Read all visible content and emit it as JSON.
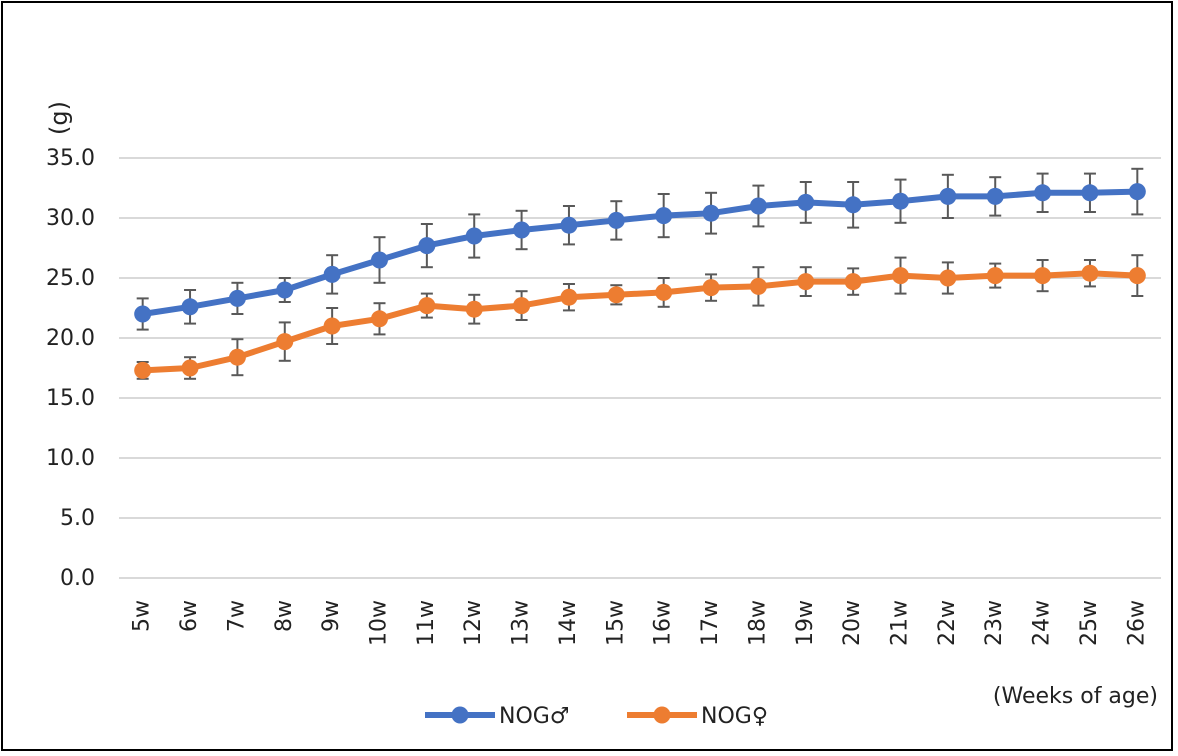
{
  "chart_data": {
    "type": "line",
    "title": "",
    "xlabel": "(Weeks of age)",
    "ylabel": "(g)",
    "ylim": [
      0,
      35
    ],
    "yticks": [
      "0.0",
      "5.0",
      "10.0",
      "15.0",
      "20.0",
      "25.0",
      "30.0",
      "35.0"
    ],
    "categories": [
      "5w",
      "6w",
      "7w",
      "8w",
      "9w",
      "10w",
      "11w",
      "12w",
      "13w",
      "14w",
      "15w",
      "16w",
      "17w",
      "18w",
      "19w",
      "20w",
      "21w",
      "22w",
      "23w",
      "24w",
      "25w",
      "26w"
    ],
    "grid": true,
    "legend_position": "bottom",
    "series": [
      {
        "name": "NOG♂",
        "color": "#4472C4",
        "values": [
          22.0,
          22.6,
          23.3,
          24.0,
          25.3,
          26.5,
          27.7,
          28.5,
          29.0,
          29.4,
          29.8,
          30.2,
          30.4,
          31.0,
          31.3,
          31.1,
          31.4,
          31.8,
          31.8,
          32.1,
          32.1,
          32.2
        ],
        "errors": [
          1.3,
          1.4,
          1.3,
          1.0,
          1.6,
          1.9,
          1.8,
          1.8,
          1.6,
          1.6,
          1.6,
          1.8,
          1.7,
          1.7,
          1.7,
          1.9,
          1.8,
          1.8,
          1.6,
          1.6,
          1.6,
          1.9
        ]
      },
      {
        "name": "NOG♀",
        "color": "#ED7D31",
        "values": [
          17.3,
          17.5,
          18.4,
          19.7,
          21.0,
          21.6,
          22.7,
          22.4,
          22.7,
          23.4,
          23.6,
          23.8,
          24.2,
          24.3,
          24.7,
          24.7,
          25.2,
          25.0,
          25.2,
          25.2,
          25.4,
          25.2
        ],
        "errors": [
          0.7,
          0.9,
          1.5,
          1.6,
          1.5,
          1.3,
          1.0,
          1.2,
          1.2,
          1.1,
          0.8,
          1.2,
          1.1,
          1.6,
          1.2,
          1.1,
          1.5,
          1.3,
          1.0,
          1.3,
          1.1,
          1.7
        ]
      }
    ]
  }
}
